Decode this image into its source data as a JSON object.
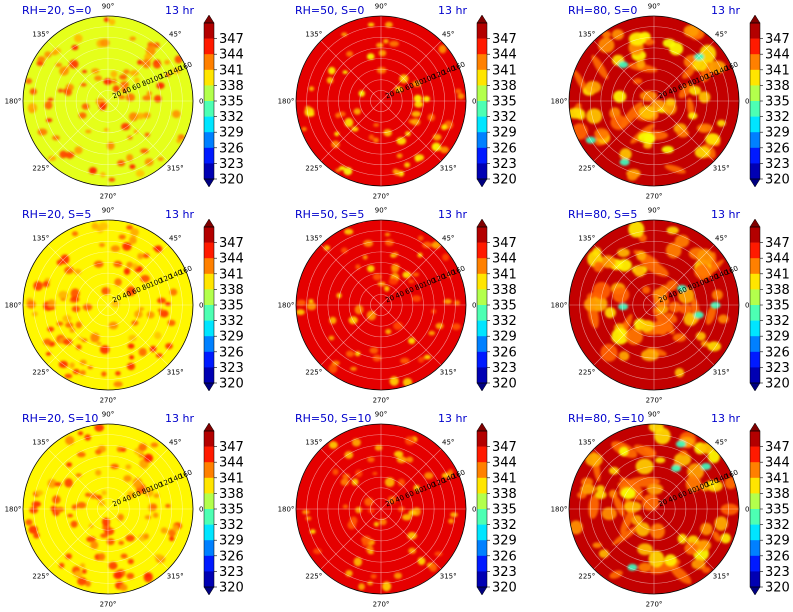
{
  "chart_data": {
    "type": "heatmap",
    "projection": "polar",
    "colormap": "jet",
    "grid": true,
    "colorbar": {
      "vmin": 320,
      "vmax": 350,
      "ticks": [
        320,
        323,
        326,
        329,
        332,
        335,
        338,
        341,
        344,
        347
      ],
      "extend": "both",
      "position": "right of each panel"
    },
    "angle_ticks": [
      "0°",
      "45°",
      "90°",
      "135°",
      "180°",
      "225°",
      "270°",
      "315°"
    ],
    "radial_ticks": [
      20,
      40,
      60,
      80,
      100,
      120,
      140,
      160
    ],
    "rmax": 160,
    "panels": [
      {
        "title": "RH=20, S=0",
        "time": "13 hr",
        "rh": 20,
        "s": 0,
        "background_level": 338,
        "spot_level": 343,
        "spots": 95,
        "spot_size": [
          2.5,
          5
        ],
        "streaks": 0,
        "seed": 11
      },
      {
        "title": "RH=50, S=0",
        "time": "13 hr",
        "rh": 50,
        "s": 0,
        "background_level": 347,
        "spot_level": 341,
        "spots": 60,
        "spot_size": [
          2.5,
          5
        ],
        "streaks": 0,
        "seed": 23
      },
      {
        "title": "RH=80, S=0",
        "time": "13 hr",
        "rh": 80,
        "s": 0,
        "background_level": 348,
        "spot_level": 341,
        "spots": 55,
        "spot_size": [
          4,
          9
        ],
        "streaks": 16,
        "seed": 37
      },
      {
        "title": "RH=20, S=5",
        "time": "13 hr",
        "rh": 20,
        "s": 5,
        "background_level": 339,
        "spot_level": 343,
        "spots": 95,
        "spot_size": [
          2.5,
          5
        ],
        "streaks": 0,
        "seed": 41
      },
      {
        "title": "RH=50, S=5",
        "time": "13 hr",
        "rh": 50,
        "s": 5,
        "background_level": 347,
        "spot_level": 342,
        "spots": 60,
        "spot_size": [
          2.5,
          5
        ],
        "streaks": 0,
        "seed": 53
      },
      {
        "title": "RH=80, S=5",
        "time": "13 hr",
        "rh": 80,
        "s": 5,
        "background_level": 348,
        "spot_level": 341,
        "spots": 55,
        "spot_size": [
          4,
          9
        ],
        "streaks": 16,
        "seed": 67
      },
      {
        "title": "RH=20, S=10",
        "time": "13 hr",
        "rh": 20,
        "s": 10,
        "background_level": 339,
        "spot_level": 343,
        "spots": 95,
        "spot_size": [
          2.5,
          5
        ],
        "streaks": 0,
        "seed": 71
      },
      {
        "title": "RH=50, S=10",
        "time": "13 hr",
        "rh": 50,
        "s": 10,
        "background_level": 347,
        "spot_level": 342,
        "spots": 60,
        "spot_size": [
          2.5,
          5
        ],
        "streaks": 0,
        "seed": 83
      },
      {
        "title": "RH=80, S=10",
        "time": "13 hr",
        "rh": 80,
        "s": 10,
        "background_level": 348,
        "spot_level": 341,
        "spots": 55,
        "spot_size": [
          4,
          9
        ],
        "streaks": 16,
        "seed": 97
      }
    ]
  }
}
